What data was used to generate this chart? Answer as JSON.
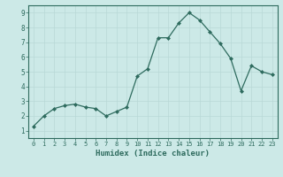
{
  "x": [
    0,
    1,
    2,
    3,
    4,
    5,
    6,
    7,
    8,
    9,
    10,
    11,
    12,
    13,
    14,
    15,
    16,
    17,
    18,
    19,
    20,
    21,
    22,
    23
  ],
  "y": [
    1.3,
    2.0,
    2.5,
    2.7,
    2.8,
    2.6,
    2.5,
    2.0,
    2.3,
    2.6,
    4.7,
    5.2,
    7.3,
    7.3,
    8.3,
    9.0,
    8.5,
    7.7,
    6.9,
    5.9,
    3.7,
    5.4,
    5.0,
    4.8
  ],
  "xlabel": "Humidex (Indice chaleur)",
  "ylim": [
    0.5,
    9.5
  ],
  "xlim": [
    -0.5,
    23.5
  ],
  "line_color": "#2e6b5e",
  "marker": "D",
  "marker_size": 2.0,
  "bg_color": "#cce9e7",
  "grid_color": "#b8d8d6",
  "axis_color": "#2e6b5e",
  "tick_label_color": "#2e6b5e",
  "xlabel_color": "#2e6b5e",
  "yticks": [
    1,
    2,
    3,
    4,
    5,
    6,
    7,
    8,
    9
  ],
  "xticks": [
    0,
    1,
    2,
    3,
    4,
    5,
    6,
    7,
    8,
    9,
    10,
    11,
    12,
    13,
    14,
    15,
    16,
    17,
    18,
    19,
    20,
    21,
    22,
    23
  ]
}
